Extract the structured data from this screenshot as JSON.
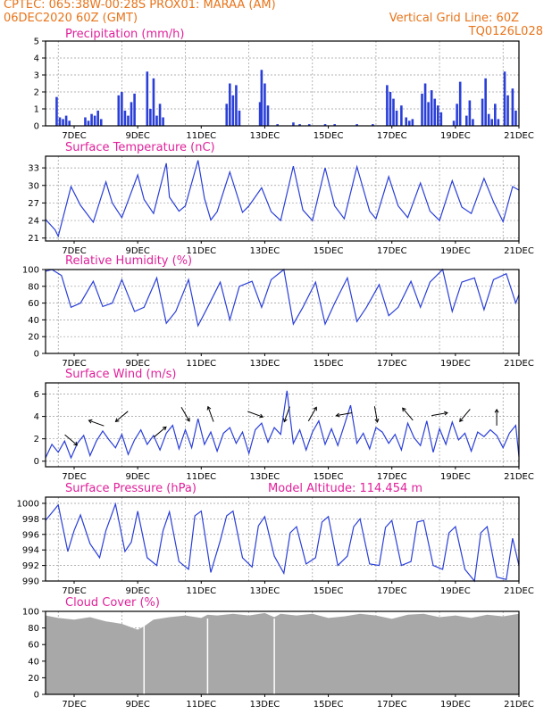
{
  "header": {
    "line1_left": "CPTEC:   065:38W-00:28S   PROX01: MARAA (AM)",
    "line2_left": "06DEC2020 60Z (GMT)",
    "line2_right": "Vertical Grid Line: 60Z",
    "line3_right": "TQ0126L028"
  },
  "colors": {
    "header": "#e8741a",
    "title": "#e0209a",
    "series": "#2a3fd8",
    "cloud": "#a8a8a8",
    "grid": "#9a9a9a"
  },
  "x_ticks": [
    "7DEC",
    "9DEC",
    "11DEC",
    "13DEC",
    "15DEC",
    "17DEC",
    "19DEC",
    "21DEC"
  ],
  "chart_data": [
    {
      "type": "bar",
      "title": "Precipitation (mm/h)",
      "ylim": [
        0,
        5
      ],
      "yticks": [
        "0",
        "1",
        "2",
        "3",
        "4",
        "5"
      ],
      "x_range": [
        6.1,
        21.0
      ],
      "x": [
        6.45,
        6.55,
        6.65,
        6.75,
        6.85,
        7.35,
        7.45,
        7.55,
        7.65,
        7.75,
        7.85,
        8.4,
        8.5,
        8.6,
        8.7,
        8.8,
        8.9,
        9.3,
        9.4,
        9.5,
        9.6,
        9.7,
        9.8,
        11.8,
        11.9,
        12.0,
        12.1,
        12.2,
        12.85,
        12.9,
        13.0,
        13.1,
        13.4,
        13.9,
        14.1,
        14.4,
        14.9,
        15.2,
        15.9,
        16.4,
        16.85,
        16.95,
        17.05,
        17.15,
        17.3,
        17.45,
        17.55,
        17.65,
        17.95,
        18.05,
        18.15,
        18.25,
        18.35,
        18.45,
        18.55,
        18.95,
        19.05,
        19.15,
        19.35,
        19.45,
        19.55,
        19.85,
        19.95,
        20.05,
        20.15,
        20.25,
        20.35,
        20.55,
        20.65,
        20.8,
        20.9
      ],
      "values": [
        1.7,
        0.5,
        0.4,
        0.6,
        0.3,
        0.5,
        0.3,
        0.7,
        0.6,
        0.9,
        0.4,
        1.8,
        2.0,
        0.9,
        0.6,
        1.4,
        1.9,
        3.2,
        1.0,
        2.8,
        0.6,
        1.3,
        0.5,
        1.3,
        2.5,
        1.8,
        2.4,
        0.9,
        1.4,
        3.3,
        2.5,
        1.2,
        0.1,
        0.2,
        0.1,
        0.1,
        0.1,
        0.1,
        0.1,
        0.1,
        2.4,
        2.0,
        1.6,
        0.9,
        1.2,
        0.5,
        0.3,
        0.4,
        1.9,
        2.5,
        1.4,
        2.1,
        1.6,
        1.2,
        0.8,
        0.3,
        1.3,
        2.6,
        0.6,
        1.5,
        0.4,
        1.6,
        2.8,
        0.7,
        0.4,
        1.3,
        0.4,
        3.2,
        1.8,
        2.2,
        0.9
      ]
    },
    {
      "type": "line",
      "title": "Surface Temperature (nC)",
      "ylim": [
        20.5,
        35
      ],
      "yticks": [
        "21",
        "24",
        "27",
        "30",
        "33"
      ],
      "x_range": [
        6.1,
        21.0
      ],
      "x": [
        6.1,
        6.4,
        6.5,
        6.9,
        7.2,
        7.6,
        8.0,
        8.2,
        8.5,
        9.0,
        9.2,
        9.5,
        9.9,
        10.0,
        10.3,
        10.5,
        10.9,
        11.1,
        11.3,
        11.5,
        11.9,
        12.3,
        12.5,
        12.9,
        13.2,
        13.5,
        13.9,
        14.2,
        14.5,
        14.9,
        15.2,
        15.5,
        15.9,
        16.3,
        16.5,
        16.9,
        17.2,
        17.5,
        17.9,
        18.2,
        18.5,
        18.9,
        19.2,
        19.5,
        19.9,
        20.2,
        20.5,
        20.8,
        21.0
      ],
      "values": [
        24.2,
        22.4,
        21.3,
        29.8,
        26.6,
        23.7,
        30.6,
        27.0,
        24.5,
        31.8,
        27.6,
        25.2,
        33.8,
        28.0,
        25.6,
        26.5,
        34.3,
        27.8,
        24.1,
        25.5,
        32.3,
        25.4,
        26.5,
        29.6,
        25.5,
        24.0,
        33.3,
        25.8,
        24.0,
        33.0,
        26.5,
        24.3,
        33.2,
        25.6,
        24.3,
        31.5,
        26.5,
        24.5,
        30.4,
        25.6,
        24.0,
        30.8,
        26.3,
        25.2,
        31.2,
        27.2,
        23.8,
        29.8,
        29.2
      ]
    },
    {
      "type": "line",
      "title": "Relative Humidity (%)",
      "ylim": [
        0,
        100
      ],
      "yticks": [
        "0",
        "20",
        "40",
        "60",
        "80",
        "100"
      ],
      "x_range": [
        6.1,
        21.0
      ],
      "x": [
        6.1,
        6.3,
        6.6,
        6.9,
        7.2,
        7.6,
        7.9,
        8.2,
        8.5,
        8.9,
        9.2,
        9.6,
        9.9,
        10.2,
        10.6,
        10.9,
        11.2,
        11.6,
        11.9,
        12.2,
        12.6,
        12.9,
        13.2,
        13.6,
        13.9,
        14.2,
        14.6,
        14.9,
        15.2,
        15.6,
        15.9,
        16.2,
        16.6,
        16.9,
        17.2,
        17.6,
        17.9,
        18.2,
        18.6,
        18.9,
        19.2,
        19.6,
        19.9,
        20.2,
        20.6,
        20.9,
        21.0
      ],
      "values": [
        98,
        100,
        93,
        55,
        60,
        86,
        56,
        60,
        88,
        50,
        55,
        90,
        36,
        50,
        88,
        33,
        55,
        85,
        40,
        80,
        86,
        55,
        88,
        100,
        35,
        55,
        85,
        35,
        60,
        90,
        38,
        55,
        82,
        45,
        55,
        86,
        55,
        85,
        100,
        50,
        85,
        90,
        52,
        88,
        95,
        60,
        70
      ]
    },
    {
      "type": "line",
      "title": "Surface Wind (m/s)",
      "ylim": [
        -0.5,
        7
      ],
      "yticks": [
        "0",
        "2",
        "4",
        "6"
      ],
      "x_range": [
        6.1,
        21.0
      ],
      "x": [
        6.1,
        6.3,
        6.5,
        6.7,
        6.9,
        7.1,
        7.3,
        7.5,
        7.7,
        7.9,
        8.1,
        8.3,
        8.5,
        8.7,
        8.9,
        9.1,
        9.3,
        9.5,
        9.7,
        9.9,
        10.1,
        10.3,
        10.5,
        10.7,
        10.9,
        11.1,
        11.3,
        11.5,
        11.7,
        11.9,
        12.1,
        12.3,
        12.5,
        12.7,
        12.9,
        13.1,
        13.3,
        13.5,
        13.7,
        13.9,
        14.1,
        14.3,
        14.5,
        14.7,
        14.9,
        15.1,
        15.3,
        15.5,
        15.7,
        15.9,
        16.1,
        16.3,
        16.5,
        16.7,
        16.9,
        17.1,
        17.3,
        17.5,
        17.7,
        17.9,
        18.1,
        18.3,
        18.5,
        18.7,
        18.9,
        19.1,
        19.3,
        19.5,
        19.7,
        19.9,
        20.1,
        20.3,
        20.5,
        20.7,
        20.9,
        21.0
      ],
      "values": [
        0.3,
        1.5,
        0.8,
        1.8,
        0.3,
        1.6,
        2.3,
        0.5,
        1.8,
        2.7,
        1.9,
        1.2,
        2.4,
        0.6,
        1.9,
        2.8,
        1.5,
        2.3,
        1.0,
        2.5,
        3.2,
        1.1,
        2.8,
        1.2,
        3.8,
        1.5,
        2.6,
        0.9,
        2.5,
        3.0,
        1.6,
        2.6,
        0.7,
        2.8,
        3.4,
        1.7,
        3.0,
        2.4,
        6.3,
        1.6,
        2.8,
        1.0,
        2.6,
        3.6,
        1.5,
        2.9,
        1.4,
        3.2,
        5.0,
        1.6,
        2.5,
        1.1,
        3.0,
        2.6,
        1.6,
        2.4,
        1.0,
        3.4,
        2.1,
        1.4,
        3.6,
        0.8,
        2.9,
        1.5,
        3.5,
        1.9,
        2.5,
        0.9,
        2.6,
        2.2,
        2.8,
        2.3,
        1.2,
        2.5,
        3.2,
        0.4
      ]
    },
    {
      "type": "line",
      "title": "Surface Pressure (hPa)",
      "subtitle": "Model Altitude: 114.454 m",
      "ylim": [
        990,
        1000.8
      ],
      "yticks": [
        "990",
        "992",
        "994",
        "996",
        "998",
        "1000"
      ],
      "x_range": [
        6.1,
        21.0
      ],
      "x": [
        6.1,
        6.5,
        6.8,
        7.0,
        7.2,
        7.5,
        7.8,
        8.0,
        8.3,
        8.6,
        8.8,
        9.0,
        9.3,
        9.6,
        9.8,
        10.0,
        10.3,
        10.6,
        10.8,
        11.0,
        11.3,
        11.6,
        11.8,
        12.0,
        12.3,
        12.6,
        12.8,
        13.0,
        13.3,
        13.6,
        13.8,
        14.0,
        14.3,
        14.6,
        14.8,
        15.0,
        15.3,
        15.6,
        15.8,
        16.0,
        16.3,
        16.6,
        16.8,
        17.0,
        17.3,
        17.6,
        17.8,
        18.0,
        18.3,
        18.6,
        18.8,
        19.0,
        19.3,
        19.6,
        19.8,
        20.0,
        20.3,
        20.6,
        20.8,
        21.0
      ],
      "values": [
        997.8,
        999.8,
        993.8,
        996.5,
        998.5,
        994.8,
        993.0,
        996.5,
        999.9,
        993.8,
        995.0,
        999.0,
        993.0,
        992.0,
        996.5,
        998.9,
        992.5,
        991.5,
        998.4,
        999.0,
        991.1,
        995.2,
        998.4,
        999.0,
        993.0,
        991.8,
        997.1,
        998.3,
        993.2,
        991.0,
        996.2,
        997.0,
        992.2,
        993.0,
        997.6,
        998.3,
        992.0,
        993.2,
        997.0,
        998.0,
        992.2,
        992.0,
        996.9,
        997.8,
        992.0,
        992.5,
        997.6,
        997.8,
        992.0,
        991.5,
        996.2,
        997.0,
        991.5,
        990.0,
        996.2,
        997.0,
        990.5,
        990.2,
        995.5,
        992.0
      ]
    },
    {
      "type": "area",
      "title": "Cloud Cover (%)",
      "ylim": [
        0,
        100
      ],
      "yticks": [
        "0",
        "20",
        "40",
        "60",
        "80",
        "100"
      ],
      "x_range": [
        6.1,
        21.0
      ],
      "x": [
        6.1,
        6.5,
        7.0,
        7.5,
        8.0,
        8.5,
        9.0,
        9.2,
        9.5,
        10.0,
        10.5,
        11.0,
        11.2,
        11.5,
        12.0,
        12.5,
        13.0,
        13.3,
        13.5,
        14.0,
        14.5,
        15.0,
        15.5,
        16.0,
        16.5,
        17.0,
        17.5,
        18.0,
        18.5,
        19.0,
        19.5,
        20.0,
        20.5,
        21.0
      ],
      "values": [
        95,
        92,
        90,
        93,
        88,
        85,
        78,
        82,
        90,
        93,
        95,
        92,
        96,
        95,
        97,
        95,
        98,
        93,
        97,
        95,
        97,
        92,
        94,
        97,
        95,
        91,
        96,
        97,
        93,
        95,
        92,
        96,
        94,
        97
      ]
    }
  ]
}
